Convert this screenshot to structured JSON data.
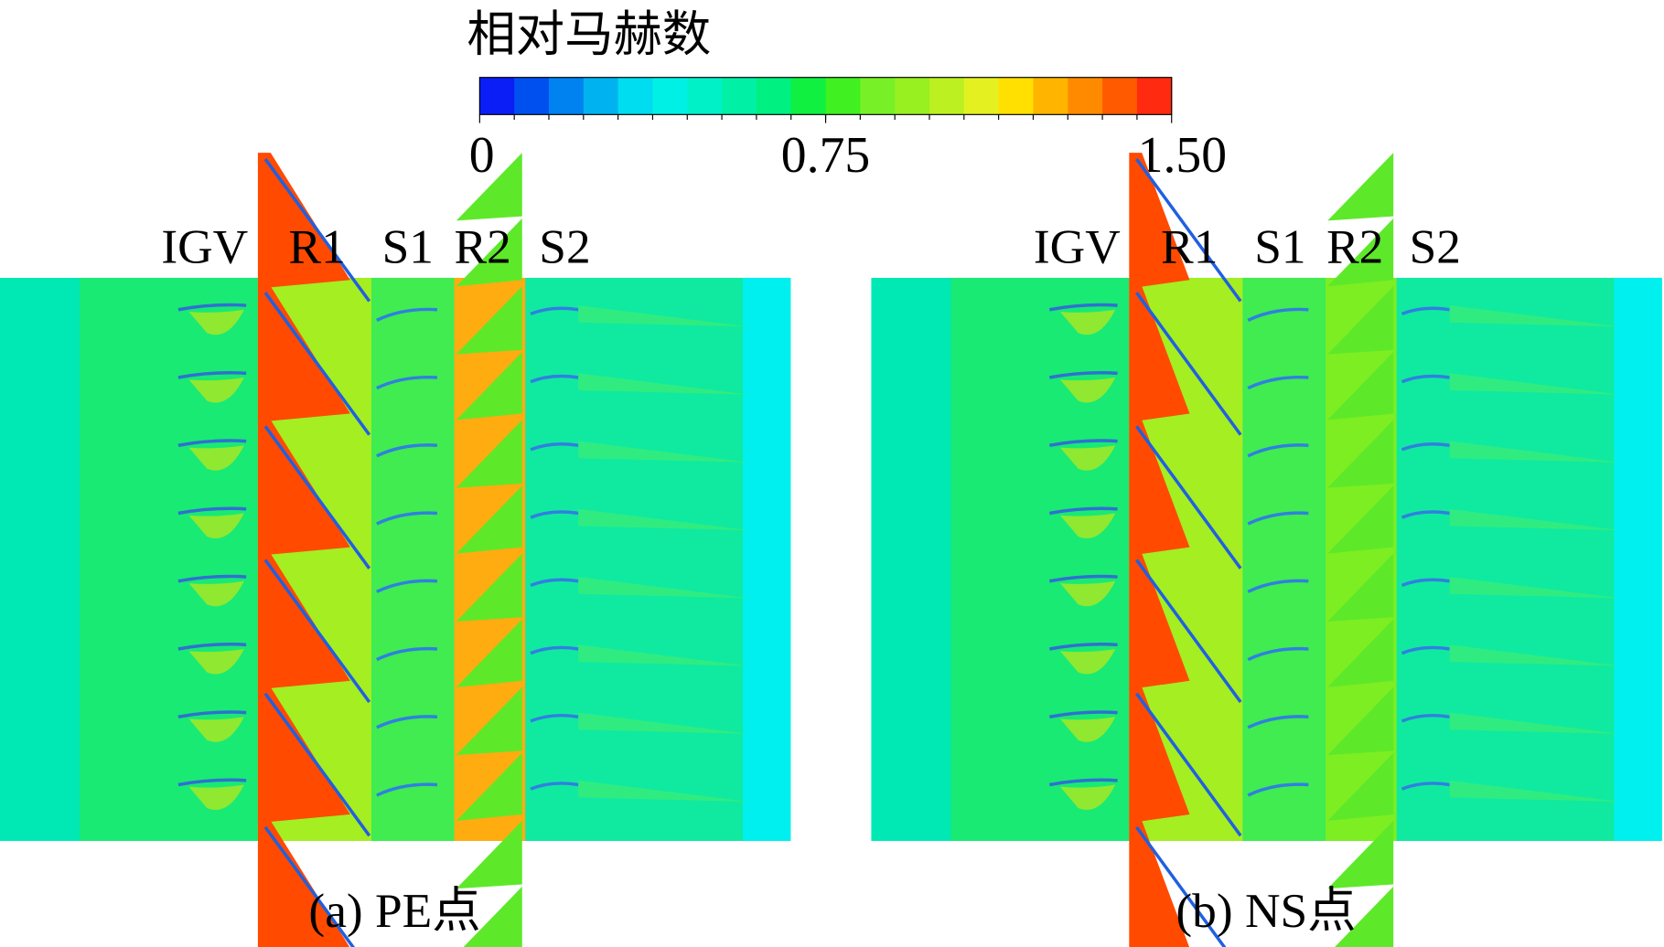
{
  "colorbar": {
    "title": "相对马赫数",
    "range": [
      0,
      1.5
    ],
    "ticks": [
      0,
      0.75,
      {
        "value": 1.5,
        "label": "1.50"
      }
    ],
    "colors": [
      "#0a1ef5",
      "#0050f0",
      "#0082f0",
      "#00b2f0",
      "#00dcf0",
      "#00f0e6",
      "#00f0c8",
      "#00f0a6",
      "#00f082",
      "#10f040",
      "#40f020",
      "#78f028",
      "#98f020",
      "#bcf020",
      "#e4f020",
      "#ffe000",
      "#ffb400",
      "#ff8a00",
      "#ff5a00",
      "#ff2a10"
    ]
  },
  "panels": [
    {
      "stages": [
        "IGV",
        "R1",
        "S1",
        "R2",
        "S2"
      ],
      "caption": "(a) PE点"
    },
    {
      "stages": [
        "IGV",
        "R1",
        "S1",
        "R2",
        "S2"
      ],
      "caption": "(b) NS点"
    }
  ]
}
